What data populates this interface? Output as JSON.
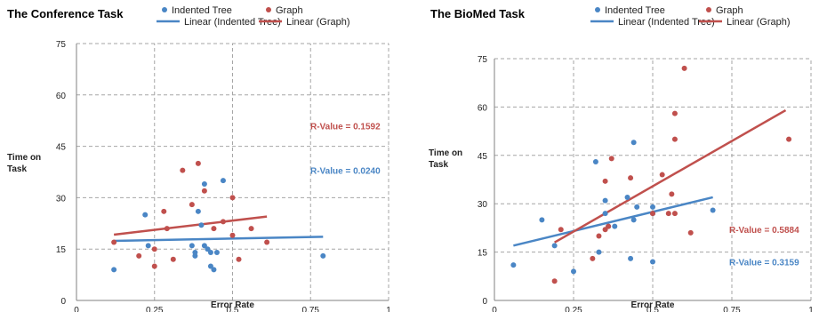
{
  "colors": {
    "tree": "#4a86c5",
    "graph": "#c0504d",
    "axis": "#808080",
    "grid": "#a6a6a6"
  },
  "chart_data": [
    {
      "type": "scatter",
      "title": "The Conference Task",
      "xlabel": "Error Rate",
      "ylabel": [
        "Time on",
        "Task"
      ],
      "xlim": [
        0,
        1
      ],
      "ylim": [
        0,
        75
      ],
      "xticks": [
        "0",
        "0.25",
        "0.5",
        "0.75",
        "1"
      ],
      "yticks": [
        "0",
        "15",
        "30",
        "45",
        "60",
        "75"
      ],
      "grid": "dashed",
      "legend": [
        "Indented Tree",
        "Graph",
        "Linear (Indented Tree)",
        "Linear (Graph)"
      ],
      "series": [
        {
          "name": "Indented Tree",
          "points": [
            [
              0.12,
              9
            ],
            [
              0.22,
              25
            ],
            [
              0.23,
              16
            ],
            [
              0.37,
              16
            ],
            [
              0.38,
              13
            ],
            [
              0.38,
              14
            ],
            [
              0.39,
              26
            ],
            [
              0.4,
              22
            ],
            [
              0.41,
              34
            ],
            [
              0.41,
              16
            ],
            [
              0.42,
              15
            ],
            [
              0.43,
              10
            ],
            [
              0.43,
              14
            ],
            [
              0.44,
              9
            ],
            [
              0.45,
              14
            ],
            [
              0.47,
              35
            ],
            [
              0.79,
              13
            ]
          ]
        },
        {
          "name": "Graph",
          "points": [
            [
              0.12,
              17
            ],
            [
              0.2,
              13
            ],
            [
              0.25,
              15
            ],
            [
              0.25,
              10
            ],
            [
              0.28,
              26
            ],
            [
              0.29,
              21
            ],
            [
              0.31,
              12
            ],
            [
              0.34,
              38
            ],
            [
              0.37,
              28
            ],
            [
              0.39,
              40
            ],
            [
              0.41,
              32
            ],
            [
              0.44,
              21
            ],
            [
              0.47,
              23
            ],
            [
              0.5,
              30
            ],
            [
              0.5,
              19
            ],
            [
              0.52,
              12
            ],
            [
              0.56,
              21
            ],
            [
              0.61,
              17
            ]
          ]
        }
      ],
      "trendlines": [
        {
          "name": "Linear (Indented Tree)",
          "x": [
            0.12,
            0.79
          ],
          "y": [
            17.4,
            18.6
          ]
        },
        {
          "name": "Linear (Graph)",
          "x": [
            0.12,
            0.61
          ],
          "y": [
            19.2,
            24.5
          ]
        }
      ],
      "annotations": [
        {
          "text": "R-Value = 0.1592",
          "series": "Graph",
          "x": 0.75,
          "y": 51
        },
        {
          "text": "R-Value = 0.0240",
          "series": "Indented Tree",
          "x": 0.75,
          "y": 38
        }
      ]
    },
    {
      "type": "scatter",
      "title": "The BioMed Task",
      "xlabel": "Error Rate",
      "ylabel": [
        "Time on",
        "Task"
      ],
      "xlim": [
        0,
        1
      ],
      "ylim": [
        0,
        75
      ],
      "xticks": [
        "0",
        "0.25",
        "0.5",
        "0.75",
        "1"
      ],
      "yticks": [
        "0",
        "15",
        "30",
        "45",
        "60",
        "75"
      ],
      "grid": "dashed",
      "legend": [
        "Indented Tree",
        "Graph",
        "Linear (Indented Tree)",
        "Linear (Graph)"
      ],
      "series": [
        {
          "name": "Indented Tree",
          "points": [
            [
              0.06,
              11
            ],
            [
              0.15,
              25
            ],
            [
              0.19,
              17
            ],
            [
              0.25,
              9
            ],
            [
              0.32,
              43
            ],
            [
              0.33,
              15
            ],
            [
              0.35,
              31
            ],
            [
              0.35,
              27
            ],
            [
              0.36,
              23
            ],
            [
              0.38,
              23
            ],
            [
              0.42,
              32
            ],
            [
              0.43,
              13
            ],
            [
              0.44,
              49
            ],
            [
              0.44,
              25
            ],
            [
              0.45,
              29
            ],
            [
              0.5,
              12
            ],
            [
              0.5,
              27
            ],
            [
              0.5,
              29
            ],
            [
              0.69,
              28
            ]
          ]
        },
        {
          "name": "Graph",
          "points": [
            [
              0.19,
              6
            ],
            [
              0.21,
              22
            ],
            [
              0.31,
              13
            ],
            [
              0.33,
              20
            ],
            [
              0.35,
              22
            ],
            [
              0.35,
              37
            ],
            [
              0.36,
              23
            ],
            [
              0.37,
              44
            ],
            [
              0.43,
              38
            ],
            [
              0.5,
              27
            ],
            [
              0.53,
              39
            ],
            [
              0.55,
              27
            ],
            [
              0.56,
              33
            ],
            [
              0.57,
              27
            ],
            [
              0.57,
              50
            ],
            [
              0.57,
              58
            ],
            [
              0.6,
              72
            ],
            [
              0.62,
              21
            ],
            [
              0.93,
              50
            ]
          ]
        }
      ],
      "trendlines": [
        {
          "name": "Linear (Indented Tree)",
          "x": [
            0.06,
            0.69
          ],
          "y": [
            17,
            32
          ]
        },
        {
          "name": "Linear (Graph)",
          "x": [
            0.19,
            0.92
          ],
          "y": [
            18,
            59
          ]
        }
      ],
      "annotations": [
        {
          "text": "R-Value = 0.5884",
          "series": "Graph",
          "x": 0.77,
          "y": 22
        },
        {
          "text": "R-Value = 0.3159",
          "series": "Indented Tree",
          "x": 0.77,
          "y": 12
        }
      ]
    }
  ]
}
